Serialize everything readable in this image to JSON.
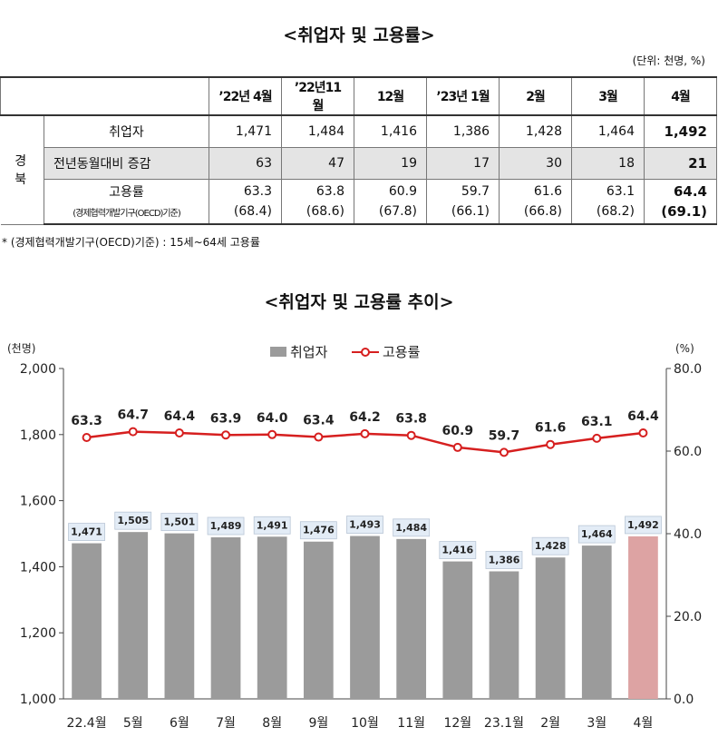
{
  "table_title": "<취업자 및 고용률>",
  "unit_note": "(단위: 천명, %)",
  "table": {
    "columns": [
      "’22년 4월",
      "’22년11월",
      "12월",
      "’23년 1월",
      "2월",
      "3월",
      "4월"
    ],
    "region": "경북",
    "rows": {
      "employed": {
        "label": "취업자",
        "values": [
          "1,471",
          "1,484",
          "1,416",
          "1,386",
          "1,428",
          "1,464",
          "1,492"
        ]
      },
      "yoy": {
        "label": "전년동월대비 증감",
        "values": [
          "63",
          "47",
          "19",
          "17",
          "30",
          "18",
          "21"
        ]
      },
      "rate": {
        "label": "고용률",
        "values": [
          "63.3",
          "63.8",
          "60.9",
          "59.7",
          "61.6",
          "63.1",
          "64.4"
        ]
      },
      "oecd": {
        "label": "(경제협력개발기구(OECD)기준)",
        "values": [
          "(68.4)",
          "(68.6)",
          "(67.8)",
          "(66.1)",
          "(66.8)",
          "(68.2)",
          "(69.1)"
        ]
      }
    }
  },
  "footnote": "* (경제협력개발기구(OECD)기준) : 15세~64세 고용률",
  "chart_title": "<취업자 및 고용률 추이>",
  "chart_data": {
    "type": "bar",
    "title": "<취업자 및 고용률 추이>",
    "categories": [
      "22.4월",
      "5월",
      "6월",
      "7월",
      "8월",
      "9월",
      "10월",
      "11월",
      "12월",
      "23.1월",
      "2월",
      "3월",
      "4월"
    ],
    "series": [
      {
        "name": "취업자",
        "type": "bar",
        "axis": "left",
        "values": [
          1471,
          1505,
          1501,
          1489,
          1491,
          1476,
          1493,
          1484,
          1416,
          1386,
          1428,
          1464,
          1492
        ]
      },
      {
        "name": "고용률",
        "type": "line",
        "axis": "right",
        "values": [
          63.3,
          64.7,
          64.4,
          63.9,
          64.0,
          63.4,
          64.2,
          63.8,
          60.9,
          59.7,
          61.6,
          63.1,
          64.4
        ]
      }
    ],
    "y_left": {
      "label": "(천명)",
      "range": [
        1000,
        2000
      ],
      "ticks": [
        "1,000",
        "1,200",
        "1,400",
        "1,600",
        "1,800",
        "2,000"
      ]
    },
    "y_right": {
      "label": "(%)",
      "range": [
        0,
        80
      ],
      "ticks": [
        "0.0",
        "20.0",
        "40.0",
        "60.0",
        "80.0"
      ]
    },
    "legend_position": "top-center",
    "colors": {
      "bar": "#9b9b9b",
      "bar_highlight": "#dda3a3",
      "line": "#d61f1f",
      "label_box": "#e3ecf6"
    }
  }
}
